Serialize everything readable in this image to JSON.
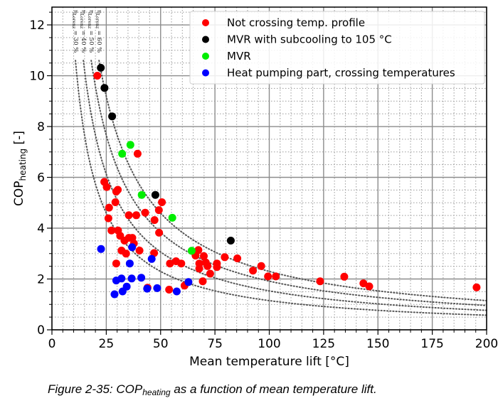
{
  "chart_data": {
    "type": "scatter",
    "title": "",
    "xlabel": "Mean temperature lift [°C]",
    "ylabel_main": "COP",
    "ylabel_sub": "heating",
    "ylabel_suffix": " [-]",
    "xlim": [
      0,
      200
    ],
    "ylim": [
      0,
      12.7
    ],
    "xticks": [
      0,
      25,
      50,
      75,
      100,
      125,
      150,
      175,
      200
    ],
    "yticks": [
      0,
      2,
      4,
      6,
      8,
      10,
      12
    ],
    "x_minor_step": 5,
    "y_minor_step": 0.5,
    "grid": "major solid, minor dotted",
    "legend_position": "top-right",
    "series": [
      {
        "name": "Not crossing temp. profile",
        "color": "#ff0000",
        "points": [
          [
            20.9,
            10.0
          ],
          [
            39.4,
            6.93
          ],
          [
            24.1,
            5.82
          ],
          [
            25.2,
            5.62
          ],
          [
            29.6,
            5.44
          ],
          [
            30.3,
            5.51
          ],
          [
            29.2,
            5.02
          ],
          [
            50.6,
            5.02
          ],
          [
            26.3,
            4.81
          ],
          [
            49.2,
            4.71
          ],
          [
            42.9,
            4.61
          ],
          [
            35.4,
            4.51
          ],
          [
            38.8,
            4.51
          ],
          [
            26.0,
            4.39
          ],
          [
            47.2,
            4.32
          ],
          [
            27.4,
            3.91
          ],
          [
            30.4,
            3.91
          ],
          [
            31.4,
            3.7
          ],
          [
            33.4,
            3.51
          ],
          [
            35.4,
            3.62
          ],
          [
            37.0,
            3.62
          ],
          [
            37.7,
            3.4
          ],
          [
            32.0,
            3.12
          ],
          [
            34.1,
            3.0
          ],
          [
            40.3,
            3.12
          ],
          [
            49.3,
            3.82
          ],
          [
            47.0,
            3.02
          ],
          [
            29.6,
            2.61
          ],
          [
            54.3,
            2.61
          ],
          [
            57.1,
            2.7
          ],
          [
            59.5,
            2.61
          ],
          [
            44.0,
            1.66
          ],
          [
            53.9,
            1.58
          ],
          [
            61.0,
            1.74
          ],
          [
            67.4,
            3.14
          ],
          [
            66.1,
            2.92
          ],
          [
            69.9,
            2.9
          ],
          [
            79.5,
            2.86
          ],
          [
            85.3,
            2.81
          ],
          [
            67.8,
            2.61
          ],
          [
            70.8,
            2.65
          ],
          [
            71.6,
            2.51
          ],
          [
            75.9,
            2.61
          ],
          [
            75.9,
            2.47
          ],
          [
            67.8,
            2.41
          ],
          [
            92.5,
            2.33
          ],
          [
            96.3,
            2.51
          ],
          [
            72.8,
            2.21
          ],
          [
            69.4,
            1.91
          ],
          [
            99.4,
            2.1
          ],
          [
            103.0,
            2.1
          ],
          [
            123.4,
            1.91
          ],
          [
            134.5,
            2.09
          ],
          [
            143.3,
            1.83
          ],
          [
            146.0,
            1.71
          ],
          [
            195.4,
            1.67
          ]
        ]
      },
      {
        "name": "MVR with subcooling to 105 °C",
        "color": "#000000",
        "points": [
          [
            22.5,
            10.31
          ],
          [
            24.2,
            9.52
          ],
          [
            27.7,
            8.4
          ],
          [
            47.6,
            5.31
          ],
          [
            82.3,
            3.51
          ]
        ]
      },
      {
        "name": "MVR",
        "color": "#00ee00",
        "points": [
          [
            36.1,
            7.28
          ],
          [
            32.3,
            6.93
          ],
          [
            41.3,
            5.31
          ],
          [
            55.4,
            4.41
          ],
          [
            64.3,
            3.11
          ]
        ]
      },
      {
        "name": "Heat pumping part, crossing temperatures",
        "color": "#0000ff",
        "points": [
          [
            36.9,
            3.25
          ],
          [
            22.6,
            3.18
          ],
          [
            45.9,
            2.79
          ],
          [
            35.8,
            2.61
          ],
          [
            29.6,
            1.94
          ],
          [
            32.0,
            2.02
          ],
          [
            36.7,
            2.02
          ],
          [
            41.1,
            2.05
          ],
          [
            34.4,
            1.7
          ],
          [
            32.5,
            1.51
          ],
          [
            28.8,
            1.4
          ],
          [
            43.8,
            1.62
          ],
          [
            48.4,
            1.64
          ],
          [
            57.4,
            1.51
          ],
          [
            62.8,
            1.88
          ]
        ]
      }
    ],
    "reference_curves": {
      "formula": "COP = eta * 383 / lift",
      "color": "#555555",
      "style": "dotted",
      "curves": [
        {
          "eta": 0.3,
          "label": "η_Lorenz = 30 %",
          "label_prefix": "η",
          "label_sub": "Lorenz",
          "label_suffix": " = 30 %"
        },
        {
          "eta": 0.4,
          "label": "η_Lorenz = 40 %",
          "label_prefix": "η",
          "label_sub": "Lorenz",
          "label_suffix": " = 40 %"
        },
        {
          "eta": 0.5,
          "label": "η_Lorenz = 50 %",
          "label_prefix": "η",
          "label_sub": "Lorenz",
          "label_suffix": " = 50 %"
        },
        {
          "eta": 0.6,
          "label": "η_Lorenz = 60 %",
          "label_prefix": "η",
          "label_sub": "Lorenz",
          "label_suffix": " = 60 %"
        }
      ],
      "cop_start": 10.6
    }
  },
  "caption": {
    "prefix": "Figure 2-35: COP",
    "sub": "heating",
    "suffix": " as a function of mean temperature lift."
  }
}
